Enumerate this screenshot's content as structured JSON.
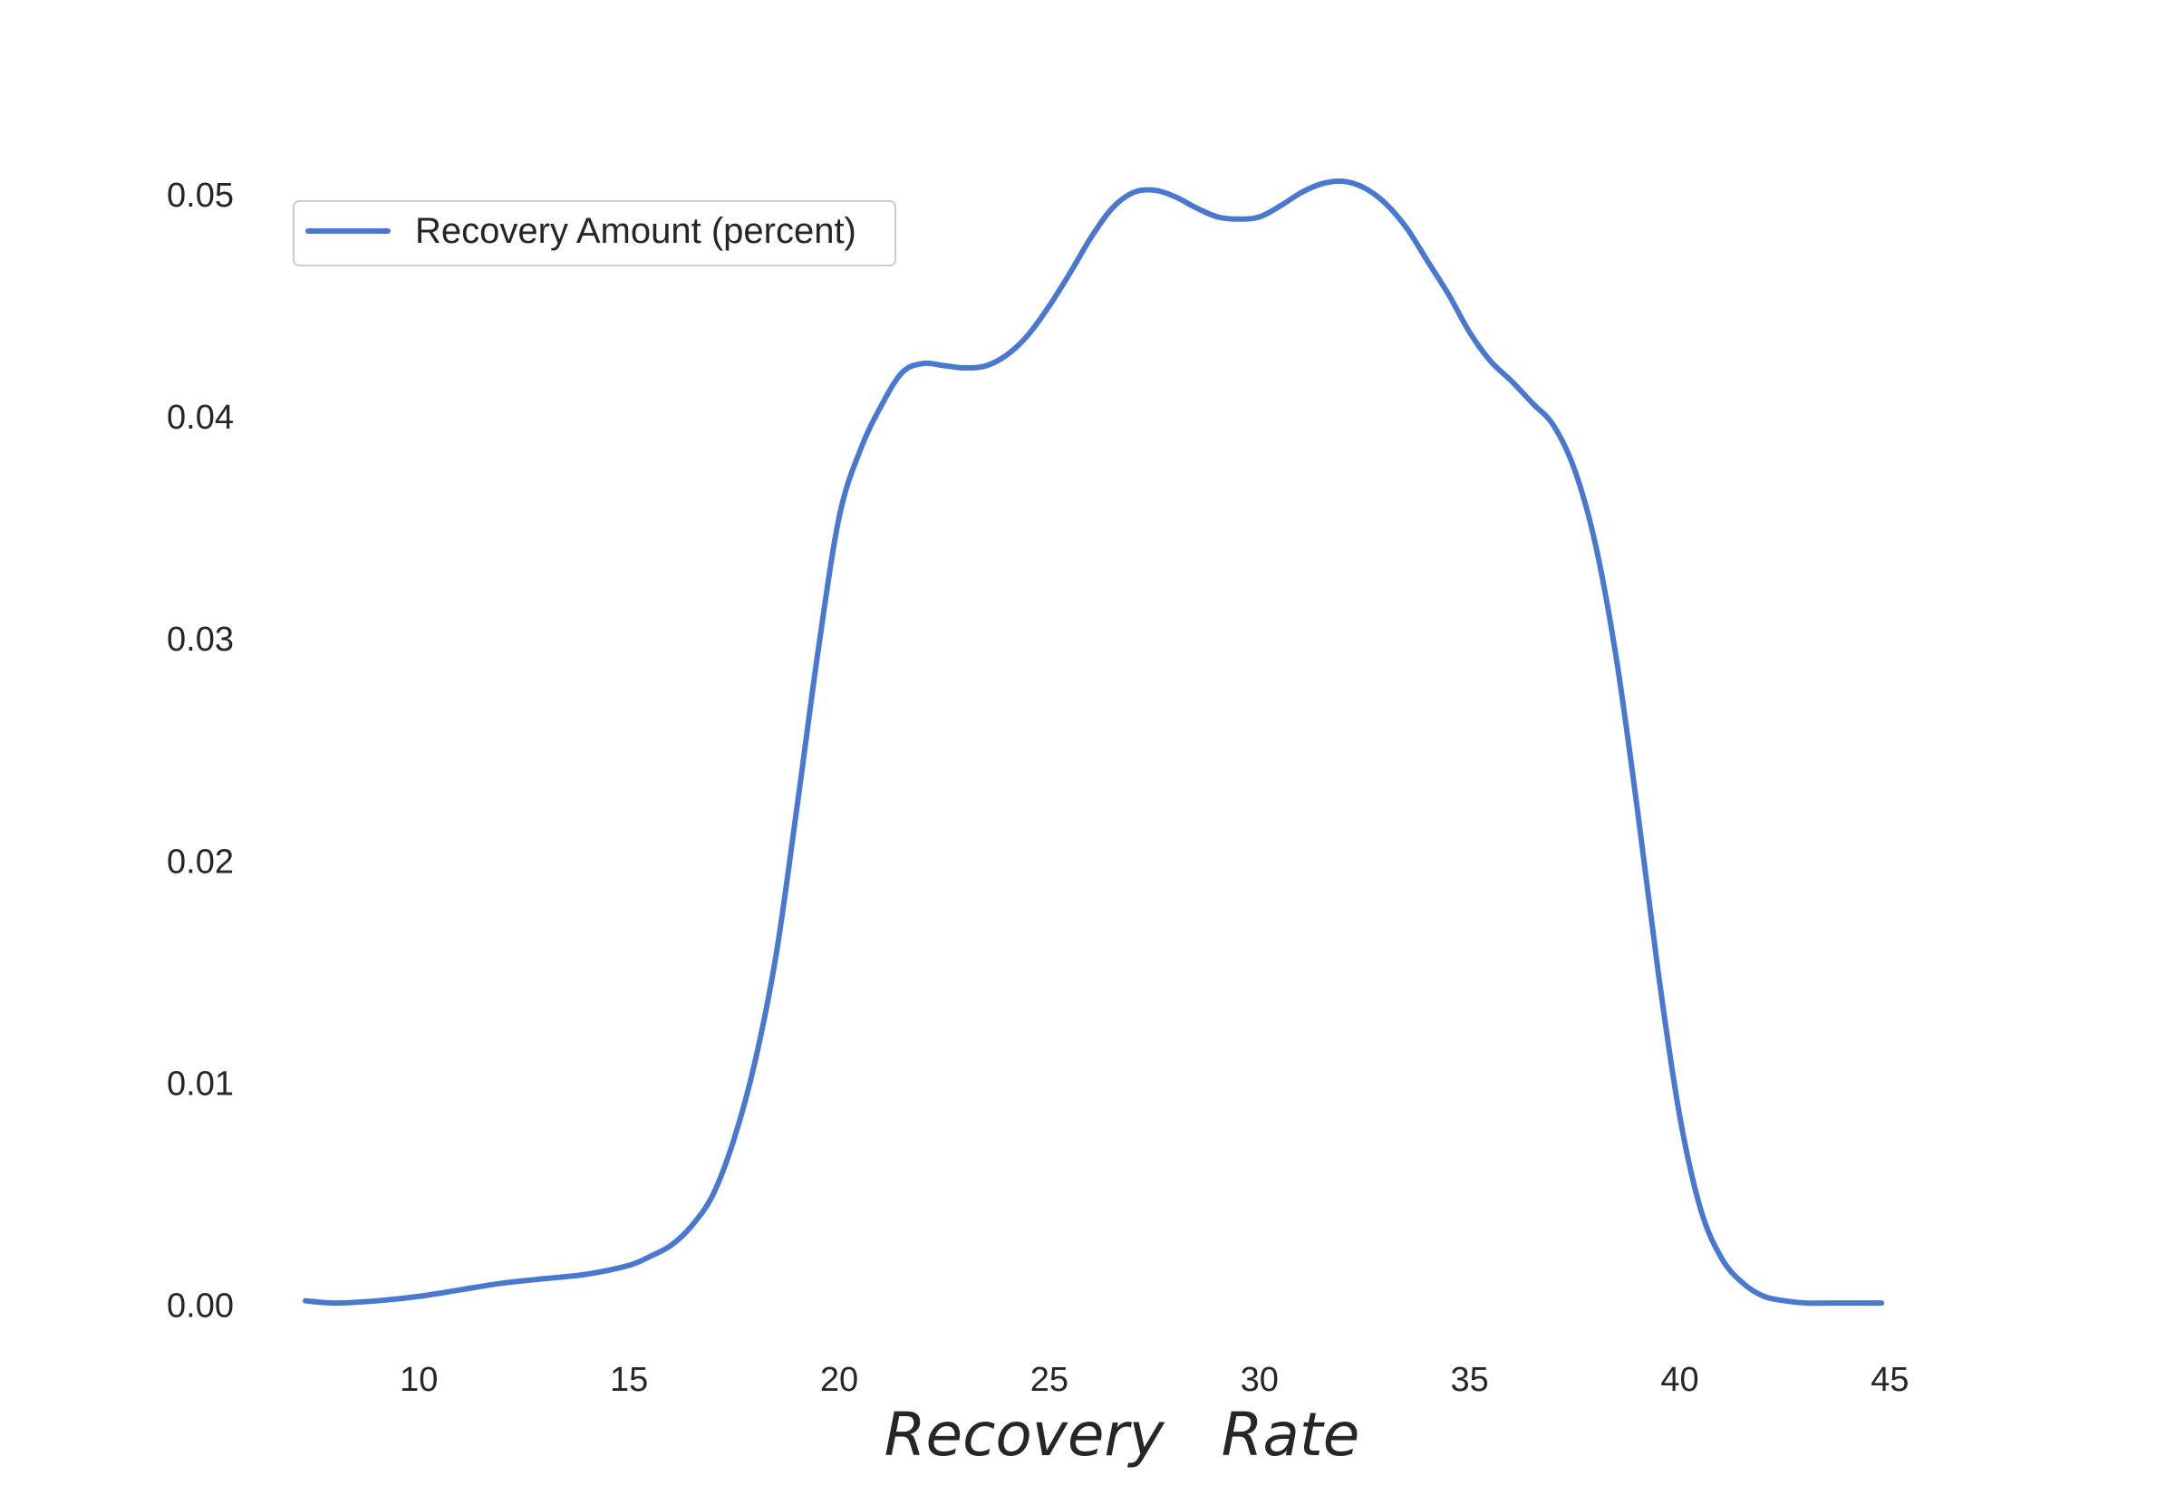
{
  "chart_data": {
    "type": "line",
    "title": "",
    "xlabel": "Recovery   Rate",
    "ylabel": "",
    "xlim": [
      6.5,
      46.5
    ],
    "ylim": [
      -0.0012,
      0.0555
    ],
    "x_ticks": [
      10,
      15,
      20,
      25,
      30,
      35,
      40,
      45
    ],
    "x_tick_labels": [
      "10",
      "15",
      "20",
      "25",
      "30",
      "35",
      "40",
      "45"
    ],
    "y_ticks": [
      0.0,
      0.01,
      0.02,
      0.03,
      0.04,
      0.05
    ],
    "y_tick_labels": [
      "0.00",
      "0.01",
      "0.02",
      "0.03",
      "0.04",
      "0.05"
    ],
    "grid": false,
    "legend_position": "upper-left",
    "colors": {
      "line": "#4878cf",
      "text": "#262626",
      "legend_border": "#cccccc"
    },
    "series": [
      {
        "name": "Recovery Amount (percent)",
        "x": [
          7.3,
          8.0,
          9.0,
          10.0,
          11.0,
          12.0,
          13.0,
          14.0,
          15.0,
          15.5,
          16.0,
          16.5,
          17.0,
          17.5,
          18.0,
          18.5,
          19.0,
          19.5,
          20.0,
          20.5,
          21.0,
          21.5,
          22.0,
          22.5,
          23.0,
          23.5,
          24.0,
          24.5,
          25.0,
          25.5,
          26.0,
          26.5,
          27.0,
          27.5,
          28.0,
          28.5,
          29.0,
          29.5,
          30.0,
          30.5,
          31.0,
          31.5,
          32.0,
          32.5,
          33.0,
          33.5,
          34.0,
          34.5,
          35.0,
          35.5,
          36.0,
          36.5,
          37.0,
          37.5,
          38.0,
          38.5,
          39.0,
          39.5,
          40.0,
          40.5,
          41.0,
          41.5,
          42.0,
          42.5,
          43.0,
          43.5,
          44.0,
          44.5,
          44.8
        ],
        "y": [
          0.0002,
          0.0001,
          0.0002,
          0.0004,
          0.0007,
          0.001,
          0.0012,
          0.0014,
          0.0018,
          0.0022,
          0.0027,
          0.0036,
          0.005,
          0.0075,
          0.011,
          0.0158,
          0.0225,
          0.0295,
          0.0355,
          0.0385,
          0.0405,
          0.042,
          0.0424,
          0.0423,
          0.0422,
          0.0423,
          0.0428,
          0.0437,
          0.045,
          0.0465,
          0.0481,
          0.0494,
          0.0501,
          0.0502,
          0.0499,
          0.0494,
          0.049,
          0.0489,
          0.049,
          0.0495,
          0.0501,
          0.0505,
          0.0506,
          0.0503,
          0.0496,
          0.0485,
          0.047,
          0.0455,
          0.0438,
          0.0425,
          0.0416,
          0.0406,
          0.0396,
          0.0376,
          0.0342,
          0.029,
          0.0222,
          0.0148,
          0.0085,
          0.0043,
          0.0021,
          0.001,
          0.0004,
          0.0002,
          0.0001,
          0.0001,
          0.0001,
          0.0001,
          0.0001
        ]
      }
    ]
  }
}
